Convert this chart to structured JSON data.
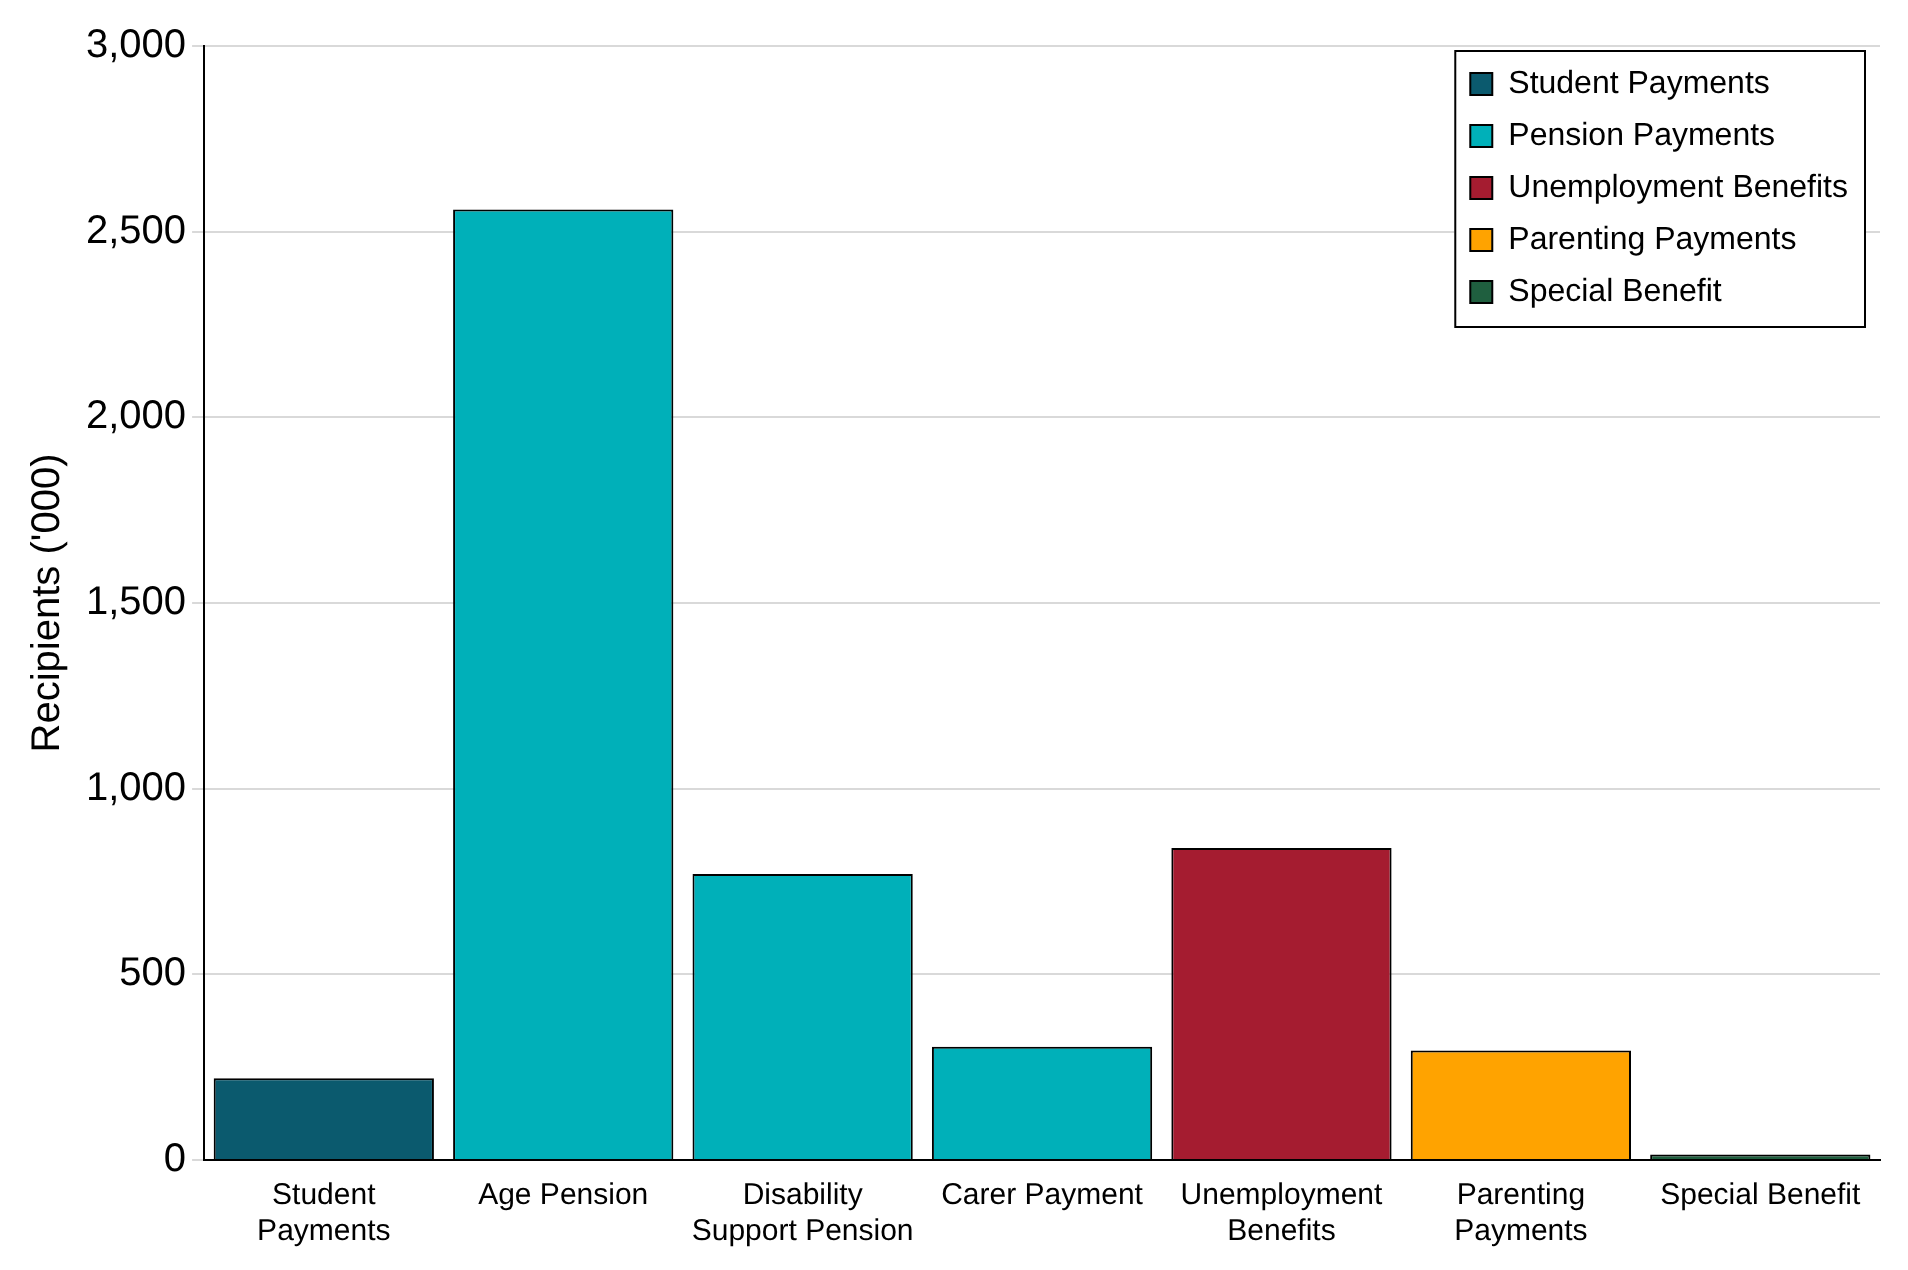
{
  "chart_data": {
    "type": "bar",
    "ylabel": "Recipients ('000)",
    "categories": [
      "Student Payments",
      "Age Pension",
      "Disability Support Pension",
      "Carer Payment",
      "Unemployment Benefits",
      "Parenting Payments",
      "Special Benefit"
    ],
    "series": [
      {
        "name": "Student Payments",
        "color": "#0b5a6e",
        "values": [
          220,
          null,
          null,
          null,
          null,
          null,
          null
        ]
      },
      {
        "name": "Pension Payments",
        "color": "#00b0b9",
        "values": [
          null,
          2560,
          770,
          305,
          null,
          null,
          null
        ]
      },
      {
        "name": "Unemployment Benefits",
        "color": "#a51c30",
        "values": [
          null,
          null,
          null,
          null,
          840,
          null,
          null
        ]
      },
      {
        "name": "Parenting Payments",
        "color": "#ffa300",
        "values": [
          null,
          null,
          null,
          null,
          null,
          295,
          null
        ]
      },
      {
        "name": "Special Benefit",
        "color": "#1f5f3f",
        "values": [
          null,
          null,
          null,
          null,
          null,
          null,
          15
        ]
      }
    ],
    "stacked": true,
    "ylim": [
      0,
      3000
    ],
    "yticks": [
      0,
      500,
      {
        "value": 1000,
        "label": "1,000"
      },
      {
        "value": 1500,
        "label": "1,500"
      },
      {
        "value": 2000,
        "label": "2,000"
      },
      {
        "value": 2500,
        "label": "2,500"
      },
      {
        "value": 3000,
        "label": "3,000"
      }
    ],
    "grid": "y",
    "legend": "top right"
  }
}
